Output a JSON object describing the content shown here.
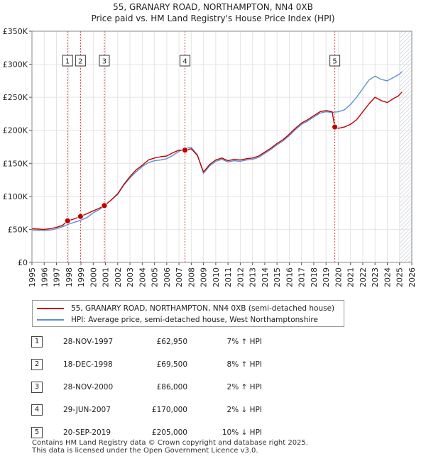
{
  "title": {
    "line1": "55, GRANARY ROAD, NORTHAMPTON, NN4 0XB",
    "line2": "Price paid vs. HM Land Registry's House Price Index (HPI)"
  },
  "colors": {
    "price_paid": "#c00000",
    "hpi": "#5b8fd2",
    "marker_line": "#d04040",
    "forecast_hatch": "#b0b8c8"
  },
  "chart_data": {
    "type": "line",
    "title": "Price paid vs. HM Land Registry's House Price Index (HPI)",
    "xlabel": "",
    "ylabel": "",
    "xlim": [
      1995,
      2026
    ],
    "ylim": [
      0,
      350000
    ],
    "x_ticks": [
      "1995",
      "1996",
      "1997",
      "1998",
      "1999",
      "2000",
      "2001",
      "2002",
      "2003",
      "2004",
      "2005",
      "2006",
      "2007",
      "2008",
      "2009",
      "2010",
      "2011",
      "2012",
      "2013",
      "2014",
      "2015",
      "2016",
      "2017",
      "2018",
      "2019",
      "2020",
      "2021",
      "2022",
      "2023",
      "2024",
      "2025",
      "2026"
    ],
    "y_ticks": [
      {
        "value": 0,
        "label": "£0"
      },
      {
        "value": 50000,
        "label": "£50K"
      },
      {
        "value": 100000,
        "label": "£100K"
      },
      {
        "value": 150000,
        "label": "£150K"
      },
      {
        "value": 200000,
        "label": "£200K"
      },
      {
        "value": 250000,
        "label": "£250K"
      },
      {
        "value": 300000,
        "label": "£300K"
      },
      {
        "value": 350000,
        "label": "£350K"
      }
    ],
    "forecast_start": 2025.0,
    "series": [
      {
        "name": "55, GRANARY ROAD, NORTHAMPTON, NN4 0XB (semi-detached house)",
        "color": "#c00000",
        "points": [
          [
            1995.0,
            51000
          ],
          [
            1995.5,
            50500
          ],
          [
            1996.0,
            50000
          ],
          [
            1996.5,
            51000
          ],
          [
            1997.0,
            53000
          ],
          [
            1997.5,
            56000
          ],
          [
            1997.9,
            62950
          ],
          [
            1998.3,
            65000
          ],
          [
            1998.96,
            69500
          ],
          [
            1999.5,
            74000
          ],
          [
            2000.0,
            78000
          ],
          [
            2000.5,
            82000
          ],
          [
            2000.91,
            86000
          ],
          [
            2001.5,
            95000
          ],
          [
            2002.0,
            104000
          ],
          [
            2002.5,
            118000
          ],
          [
            2003.0,
            130000
          ],
          [
            2003.5,
            140000
          ],
          [
            2004.0,
            147000
          ],
          [
            2004.5,
            155000
          ],
          [
            2005.0,
            158000
          ],
          [
            2005.5,
            160000
          ],
          [
            2006.0,
            161000
          ],
          [
            2006.5,
            166000
          ],
          [
            2007.0,
            170000
          ],
          [
            2007.49,
            170000
          ],
          [
            2008.0,
            172000
          ],
          [
            2008.5,
            162000
          ],
          [
            2009.0,
            137000
          ],
          [
            2009.5,
            148000
          ],
          [
            2010.0,
            155000
          ],
          [
            2010.5,
            158000
          ],
          [
            2011.0,
            154000
          ],
          [
            2011.5,
            156000
          ],
          [
            2012.0,
            155000
          ],
          [
            2012.5,
            157000
          ],
          [
            2013.0,
            158000
          ],
          [
            2013.5,
            161000
          ],
          [
            2014.0,
            167000
          ],
          [
            2014.5,
            173000
          ],
          [
            2015.0,
            180000
          ],
          [
            2015.5,
            186000
          ],
          [
            2016.0,
            194000
          ],
          [
            2016.5,
            203000
          ],
          [
            2017.0,
            211000
          ],
          [
            2017.5,
            216000
          ],
          [
            2018.0,
            222000
          ],
          [
            2018.5,
            228000
          ],
          [
            2019.0,
            230000
          ],
          [
            2019.5,
            228000
          ],
          [
            2019.72,
            205000
          ],
          [
            2020.0,
            203000
          ],
          [
            2020.5,
            205000
          ],
          [
            2021.0,
            209000
          ],
          [
            2021.5,
            216000
          ],
          [
            2022.0,
            228000
          ],
          [
            2022.5,
            240000
          ],
          [
            2023.0,
            250000
          ],
          [
            2023.5,
            245000
          ],
          [
            2024.0,
            242000
          ],
          [
            2024.5,
            248000
          ],
          [
            2024.9,
            252000
          ],
          [
            2025.2,
            258000
          ]
        ]
      },
      {
        "name": "HPI: Average price, semi-detached house, West Northamptonshire",
        "color": "#5b8fd2",
        "points": [
          [
            1995.0,
            49000
          ],
          [
            1995.5,
            48500
          ],
          [
            1996.0,
            48000
          ],
          [
            1996.5,
            49000
          ],
          [
            1997.0,
            51000
          ],
          [
            1997.5,
            54000
          ],
          [
            1998.0,
            58000
          ],
          [
            1998.5,
            61000
          ],
          [
            1999.0,
            64000
          ],
          [
            1999.5,
            68000
          ],
          [
            2000.0,
            75000
          ],
          [
            2000.5,
            80000
          ],
          [
            2001.0,
            87000
          ],
          [
            2001.5,
            95000
          ],
          [
            2002.0,
            103000
          ],
          [
            2002.5,
            117000
          ],
          [
            2003.0,
            128000
          ],
          [
            2003.5,
            137000
          ],
          [
            2004.0,
            145000
          ],
          [
            2004.5,
            151000
          ],
          [
            2005.0,
            154000
          ],
          [
            2005.5,
            155000
          ],
          [
            2006.0,
            157000
          ],
          [
            2006.5,
            162000
          ],
          [
            2007.0,
            168000
          ],
          [
            2007.5,
            173000
          ],
          [
            2008.0,
            174000
          ],
          [
            2008.5,
            163000
          ],
          [
            2009.0,
            135000
          ],
          [
            2009.5,
            146000
          ],
          [
            2010.0,
            153000
          ],
          [
            2010.5,
            156000
          ],
          [
            2011.0,
            152000
          ],
          [
            2011.5,
            154000
          ],
          [
            2012.0,
            153000
          ],
          [
            2012.5,
            155000
          ],
          [
            2013.0,
            156000
          ],
          [
            2013.5,
            159000
          ],
          [
            2014.0,
            165000
          ],
          [
            2014.5,
            171000
          ],
          [
            2015.0,
            178000
          ],
          [
            2015.5,
            184000
          ],
          [
            2016.0,
            192000
          ],
          [
            2016.5,
            201000
          ],
          [
            2017.0,
            209000
          ],
          [
            2017.5,
            214000
          ],
          [
            2018.0,
            220000
          ],
          [
            2018.5,
            226000
          ],
          [
            2019.0,
            228000
          ],
          [
            2019.5,
            227000
          ],
          [
            2020.0,
            228000
          ],
          [
            2020.5,
            231000
          ],
          [
            2021.0,
            239000
          ],
          [
            2021.5,
            250000
          ],
          [
            2022.0,
            263000
          ],
          [
            2022.5,
            276000
          ],
          [
            2023.0,
            282000
          ],
          [
            2023.5,
            277000
          ],
          [
            2024.0,
            275000
          ],
          [
            2024.5,
            280000
          ],
          [
            2025.0,
            285000
          ],
          [
            2025.2,
            289000
          ]
        ]
      }
    ],
    "sales": [
      {
        "label": "1",
        "x": 1997.91,
        "price": 62950
      },
      {
        "label": "2",
        "x": 1998.96,
        "price": 69500
      },
      {
        "label": "3",
        "x": 2000.91,
        "price": 86000
      },
      {
        "label": "4",
        "x": 2007.49,
        "price": 170000
      },
      {
        "label": "5",
        "x": 2019.72,
        "price": 205000
      }
    ]
  },
  "legend": {
    "price_paid_label": "55, GRANARY ROAD, NORTHAMPTON, NN4 0XB (semi-detached house)",
    "hpi_label": "HPI: Average price, semi-detached house, West Northamptonshire"
  },
  "sales_table": [
    {
      "num": "1",
      "date": "28-NOV-1997",
      "price": "£62,950",
      "hpi": "7% ↑ HPI"
    },
    {
      "num": "2",
      "date": "18-DEC-1998",
      "price": "£69,500",
      "hpi": "8% ↑ HPI"
    },
    {
      "num": "3",
      "date": "28-NOV-2000",
      "price": "£86,000",
      "hpi": "2% ↑ HPI"
    },
    {
      "num": "4",
      "date": "29-JUN-2007",
      "price": "£170,000",
      "hpi": "2% ↓ HPI"
    },
    {
      "num": "5",
      "date": "20-SEP-2019",
      "price": "£205,000",
      "hpi": "10% ↓ HPI"
    }
  ],
  "footer": {
    "line1": "Contains HM Land Registry data © Crown copyright and database right 2025.",
    "line2": "This data is licensed under the Open Government Licence v3.0."
  }
}
